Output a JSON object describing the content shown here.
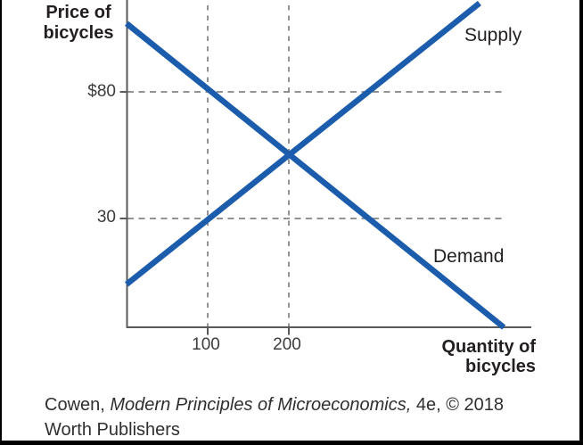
{
  "figure": {
    "y_axis_title_line1": "Price of",
    "y_axis_title_line2": "bicycles",
    "x_axis_title_line1": "Quantity of",
    "x_axis_title_line2": "bicycles",
    "supply_label": "Supply",
    "demand_label": "Demand",
    "price_tick_80": "$80",
    "price_tick_30": "30",
    "qty_tick_100": "100",
    "qty_tick_200": "200"
  },
  "citation": {
    "prefix": "Cowen, ",
    "title_italic": "Modern Principles of Microeconomics,",
    "suffix": " 4e, © 2018",
    "line2": "Worth Publishers"
  },
  "colors": {
    "curve_blue": "#1b5cac",
    "axis_gray": "#58595b",
    "dash_gray": "#808285",
    "text_dark": "#231f20"
  },
  "chart_data": {
    "type": "line",
    "title": "Supply and demand for bicycles",
    "xlabel": "Quantity of bicycles",
    "ylabel": "Price of bicycles",
    "x_ticks": [
      100,
      200
    ],
    "y_ticks": [
      80,
      30
    ],
    "xlim": [
      0,
      500
    ],
    "ylim": [
      -13,
      116
    ],
    "grid": "dashed guide lines only, at P=80, P=30, Q=100, Q=200",
    "legend_position": "text labels beside curves",
    "series": [
      {
        "name": "Supply",
        "points": [
          [
            0,
            4
          ],
          [
            435,
            115
          ]
        ]
      },
      {
        "name": "Demand",
        "points": [
          [
            0,
            107
          ],
          [
            465,
            -13
          ]
        ]
      }
    ],
    "annotations": {
      "equilibrium": {
        "quantity": 200,
        "price": 55
      },
      "demand_at_price_80": {
        "quantity": 100,
        "price": 80
      },
      "supply_at_price_30": {
        "quantity": 100,
        "price": 30
      }
    }
  }
}
